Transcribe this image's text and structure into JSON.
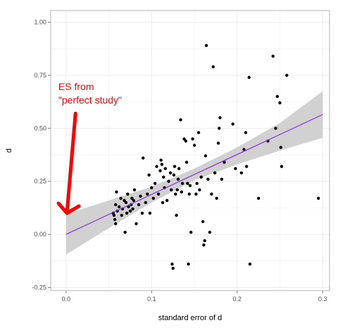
{
  "chart_data": {
    "type": "scatter",
    "xlabel": "standard error of d",
    "ylabel": "d",
    "xlim": [
      -0.018,
      0.308
    ],
    "ylim": [
      -0.265,
      1.055
    ],
    "x_ticks": [
      0.0,
      0.1,
      0.2,
      0.3
    ],
    "x_tick_labels": [
      "0.0",
      "0.1",
      "0.2",
      "0.3"
    ],
    "y_ticks": [
      -0.25,
      0.0,
      0.25,
      0.5,
      0.75,
      1.0
    ],
    "y_tick_labels": [
      "-0.25",
      "0.00",
      "0.25",
      "0.50",
      "0.75",
      "1.00"
    ],
    "grid": true,
    "colors": {
      "points": "#000000",
      "fit_line": "#8a2be2",
      "confidence_band": "#cccccc",
      "annotation": "#ff0000",
      "grid": "#ececec",
      "panel_border": "#b3b3b3"
    },
    "fit_line": {
      "x": [
        0.0,
        0.3
      ],
      "y": [
        0.0,
        0.565
      ]
    },
    "confidence_band": {
      "x": [
        0.0,
        0.05,
        0.1,
        0.15,
        0.2,
        0.25,
        0.3
      ],
      "lower": [
        -0.095,
        0.03,
        0.15,
        0.255,
        0.33,
        0.395,
        0.455
      ],
      "upper": [
        0.095,
        0.16,
        0.225,
        0.31,
        0.41,
        0.525,
        0.675
      ]
    },
    "points": [
      {
        "x": 0.055,
        "y": 0.1
      },
      {
        "x": 0.056,
        "y": 0.09
      },
      {
        "x": 0.057,
        "y": 0.07
      },
      {
        "x": 0.058,
        "y": 0.05
      },
      {
        "x": 0.058,
        "y": 0.14
      },
      {
        "x": 0.059,
        "y": 0.2
      },
      {
        "x": 0.06,
        "y": 0.11
      },
      {
        "x": 0.062,
        "y": 0.13
      },
      {
        "x": 0.064,
        "y": 0.17
      },
      {
        "x": 0.065,
        "y": 0.09
      },
      {
        "x": 0.066,
        "y": 0.12
      },
      {
        "x": 0.068,
        "y": 0.16
      },
      {
        "x": 0.069,
        "y": 0.01
      },
      {
        "x": 0.07,
        "y": 0.15
      },
      {
        "x": 0.071,
        "y": 0.1
      },
      {
        "x": 0.072,
        "y": 0.19
      },
      {
        "x": 0.073,
        "y": 0.13
      },
      {
        "x": 0.075,
        "y": 0.11
      },
      {
        "x": 0.076,
        "y": 0.14
      },
      {
        "x": 0.077,
        "y": 0.17
      },
      {
        "x": 0.078,
        "y": 0.12
      },
      {
        "x": 0.079,
        "y": 0.16
      },
      {
        "x": 0.08,
        "y": 0.21
      },
      {
        "x": 0.082,
        "y": 0.05
      },
      {
        "x": 0.085,
        "y": 0.14
      },
      {
        "x": 0.087,
        "y": 0.18
      },
      {
        "x": 0.089,
        "y": 0.1
      },
      {
        "x": 0.09,
        "y": 0.36
      },
      {
        "x": 0.093,
        "y": 0.15
      },
      {
        "x": 0.095,
        "y": 0.19
      },
      {
        "x": 0.097,
        "y": 0.28
      },
      {
        "x": 0.098,
        "y": 0.1
      },
      {
        "x": 0.1,
        "y": 0.22
      },
      {
        "x": 0.102,
        "y": 0.17
      },
      {
        "x": 0.104,
        "y": 0.24
      },
      {
        "x": 0.106,
        "y": 0.32
      },
      {
        "x": 0.108,
        "y": 0.19
      },
      {
        "x": 0.11,
        "y": 0.3
      },
      {
        "x": 0.111,
        "y": 0.35
      },
      {
        "x": 0.112,
        "y": 0.33
      },
      {
        "x": 0.113,
        "y": 0.15
      },
      {
        "x": 0.114,
        "y": 0.27
      },
      {
        "x": 0.115,
        "y": 0.22
      },
      {
        "x": 0.116,
        "y": 0.31
      },
      {
        "x": 0.118,
        "y": 0.16
      },
      {
        "x": 0.12,
        "y": 0.25
      },
      {
        "x": 0.122,
        "y": 0.29
      },
      {
        "x": 0.123,
        "y": 0.21
      },
      {
        "x": 0.124,
        "y": -0.14
      },
      {
        "x": 0.125,
        "y": -0.16
      },
      {
        "x": 0.126,
        "y": 0.28
      },
      {
        "x": 0.127,
        "y": 0.32
      },
      {
        "x": 0.128,
        "y": 0.19
      },
      {
        "x": 0.129,
        "y": 0.09
      },
      {
        "x": 0.13,
        "y": 0.21
      },
      {
        "x": 0.131,
        "y": 0.26
      },
      {
        "x": 0.132,
        "y": 0.31
      },
      {
        "x": 0.134,
        "y": 0.54
      },
      {
        "x": 0.135,
        "y": 0.2
      },
      {
        "x": 0.136,
        "y": 0.24
      },
      {
        "x": 0.138,
        "y": 0.45
      },
      {
        "x": 0.14,
        "y": 0.44
      },
      {
        "x": 0.141,
        "y": 0.34
      },
      {
        "x": 0.142,
        "y": 0.24
      },
      {
        "x": 0.143,
        "y": -0.14
      },
      {
        "x": 0.144,
        "y": 0.19
      },
      {
        "x": 0.145,
        "y": 0.23
      },
      {
        "x": 0.146,
        "y": 0.01
      },
      {
        "x": 0.148,
        "y": 0.45
      },
      {
        "x": 0.15,
        "y": 0.42
      },
      {
        "x": 0.152,
        "y": 0.19
      },
      {
        "x": 0.153,
        "y": 0.24
      },
      {
        "x": 0.155,
        "y": 0.48
      },
      {
        "x": 0.156,
        "y": 0.21
      },
      {
        "x": 0.158,
        "y": 0.27
      },
      {
        "x": 0.16,
        "y": 0.06
      },
      {
        "x": 0.161,
        "y": -0.05
      },
      {
        "x": 0.162,
        "y": -0.03
      },
      {
        "x": 0.163,
        "y": 0.37
      },
      {
        "x": 0.164,
        "y": 0.89
      },
      {
        "x": 0.166,
        "y": 0.26
      },
      {
        "x": 0.168,
        "y": 0.01
      },
      {
        "x": 0.17,
        "y": 0.19
      },
      {
        "x": 0.172,
        "y": 0.79
      },
      {
        "x": 0.174,
        "y": 0.29
      },
      {
        "x": 0.176,
        "y": 0.17
      },
      {
        "x": 0.178,
        "y": 0.43
      },
      {
        "x": 0.179,
        "y": 0.5
      },
      {
        "x": 0.18,
        "y": 0.55
      },
      {
        "x": 0.182,
        "y": 0.26
      },
      {
        "x": 0.185,
        "y": 0.34
      },
      {
        "x": 0.195,
        "y": 0.52
      },
      {
        "x": 0.198,
        "y": 0.31
      },
      {
        "x": 0.205,
        "y": 0.29
      },
      {
        "x": 0.208,
        "y": 0.4
      },
      {
        "x": 0.21,
        "y": 0.48
      },
      {
        "x": 0.211,
        "y": 0.32
      },
      {
        "x": 0.214,
        "y": 0.74
      },
      {
        "x": 0.215,
        "y": -0.14
      },
      {
        "x": 0.225,
        "y": 0.17
      },
      {
        "x": 0.236,
        "y": 0.44
      },
      {
        "x": 0.242,
        "y": 0.84
      },
      {
        "x": 0.245,
        "y": 0.5
      },
      {
        "x": 0.247,
        "y": 0.65
      },
      {
        "x": 0.25,
        "y": 0.62
      },
      {
        "x": 0.251,
        "y": 0.41
      },
      {
        "x": 0.252,
        "y": 0.32
      },
      {
        "x": 0.258,
        "y": 0.75
      },
      {
        "x": 0.295,
        "y": 0.17
      }
    ],
    "annotations": [
      {
        "lines": [
          "ES from",
          "\"perfect study\""
        ],
        "color": "#ff0000",
        "text_anchor": {
          "x": -0.009,
          "y": 0.68
        },
        "arrow_from": {
          "x": 0.011,
          "y": 0.57
        },
        "arrow_to": {
          "x": 0.001,
          "y": 0.1
        }
      }
    ]
  }
}
